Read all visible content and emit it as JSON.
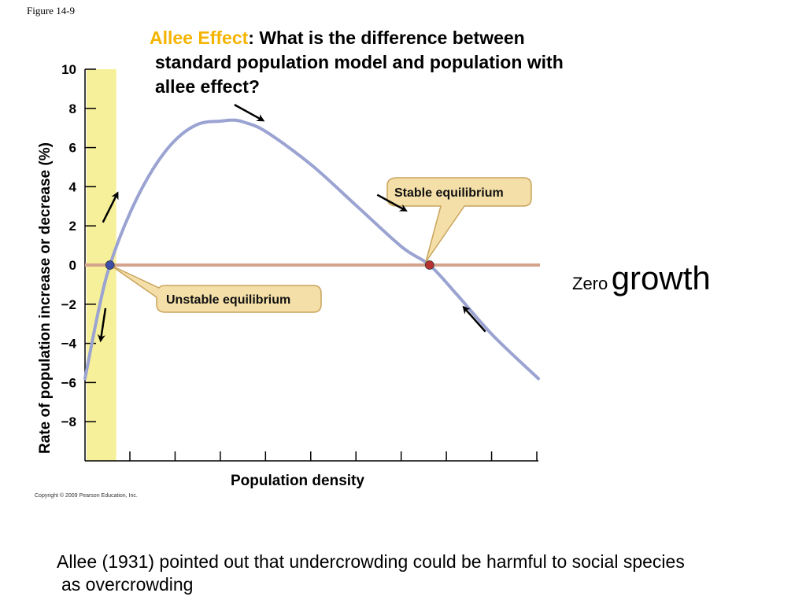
{
  "figure_label": "Figure 14-9",
  "title": {
    "highlight": "Allee Effect",
    "rest_line1": ": What is the difference between",
    "line2": "standard population model and population with",
    "line3": "allee effect?"
  },
  "side_text": {
    "small": "Zero",
    "big": "growth"
  },
  "footnote": {
    "line1": "Allee (1931) pointed out that undercrowding could be harmful to social species",
    "line2": "as overcrowding"
  },
  "copyright": "Copyright © 2009 Pearson Education, Inc.",
  "colors": {
    "curve": "#9aa3d1",
    "zero_line": "#d4a38c",
    "shaded_band": "#f7f09a",
    "callout_fill": "#f4dfa8",
    "callout_stroke": "#c9a45c",
    "unstable_point": "#3d4ea8",
    "stable_point": "#b83232",
    "title_highlight": "#f4b400"
  },
  "chart_data": {
    "type": "line",
    "ylabel": "Rate of population increase or decrease (%)",
    "xlabel": "Population density",
    "ylim": [
      -9,
      10
    ],
    "xlim": [
      0,
      10
    ],
    "y_ticks": [
      10,
      8,
      6,
      4,
      2,
      0,
      -2,
      -4,
      -6,
      -8
    ],
    "y_tick_labels": [
      "10",
      "8",
      "6",
      "4",
      "2",
      "0",
      "−2",
      "−4",
      "−6",
      "−8"
    ],
    "x_tick_count": 10,
    "x_tick_labels_shown": false,
    "shaded_band_x": [
      0,
      0.55
    ],
    "zero_line": 0,
    "series": [
      {
        "x": [
          0,
          0.3,
          0.55,
          1.0,
          1.5,
          2.0,
          2.5,
          3.0,
          3.25,
          3.5,
          4.0,
          5.0,
          6.0,
          7.0,
          7.6,
          8.2,
          9.0,
          10.0
        ],
        "y": [
          -5.8,
          -2.3,
          0,
          2.7,
          4.9,
          6.4,
          7.2,
          7.35,
          7.4,
          7.3,
          6.8,
          5.1,
          3.0,
          0.9,
          0,
          -1.5,
          -3.6,
          -5.8
        ]
      }
    ],
    "equilibria": [
      {
        "label": "Unstable equilibrium",
        "x": 0.55,
        "y": 0
      },
      {
        "label": "Stable equilibrium",
        "x": 7.6,
        "y": 0
      }
    ],
    "arrows": [
      {
        "x": 0.55,
        "y": 2.9,
        "direction": "up"
      },
      {
        "x": 0.4,
        "y": -3.0,
        "direction": "down"
      },
      {
        "x": 3.6,
        "y": 7.8,
        "direction": "right-down"
      },
      {
        "x": 6.75,
        "y": 3.2,
        "direction": "right-down"
      },
      {
        "x": 8.6,
        "y": -2.8,
        "direction": "left-up"
      }
    ]
  }
}
